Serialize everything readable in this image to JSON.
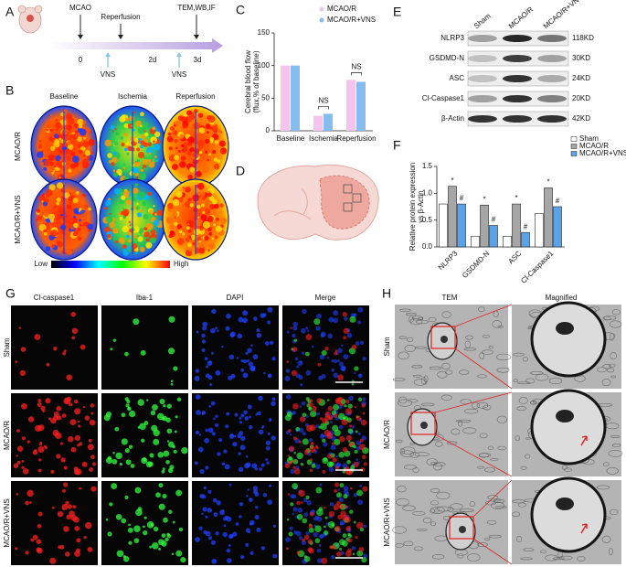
{
  "panels": {
    "labels": [
      "A",
      "B",
      "C",
      "D",
      "E",
      "F",
      "G",
      "H"
    ]
  },
  "timeline": {
    "events": [
      "MCAO",
      "Reperfusion",
      "TEM,WB,IF"
    ],
    "times": [
      "0",
      "2d",
      "3d"
    ],
    "stimulation": [
      "VNS",
      "VNS"
    ]
  },
  "flow_maps": {
    "columns": [
      "Baseline",
      "Ischemia",
      "Reperfusion"
    ],
    "rows": [
      "MCAO/R",
      "MCAO/R+VNS"
    ],
    "scale": {
      "low": "Low",
      "high": "High"
    }
  },
  "chart_data": [
    {
      "type": "bar",
      "ylabel": [
        "Cerebral blood flow",
        "(flux,% of baseline)"
      ],
      "categories": [
        "Baseline",
        "Ischemia",
        "Reperfusion"
      ],
      "series": [
        {
          "name": "MCAO/R",
          "color": "#f5c4ee",
          "values": [
            100,
            23,
            78
          ]
        },
        {
          "name": "MCAO/R+VNS",
          "color": "#86bdf0",
          "values": [
            100,
            26,
            75
          ]
        }
      ],
      "ylim": [
        0,
        150
      ],
      "yticks": [
        0,
        50,
        100,
        150
      ],
      "annotations": [
        {
          "category": "Ischemia",
          "text": "NS"
        },
        {
          "category": "Reperfusion",
          "text": "NS"
        }
      ]
    },
    {
      "type": "bar",
      "ylabel": [
        "Relative protein expression",
        "vs β-Actin"
      ],
      "categories": [
        "NLRP3",
        "GSDMD-N",
        "ASC",
        "Cl-Caspase1"
      ],
      "series": [
        {
          "name": "Sham",
          "color": "#ffffff",
          "values": [
            0.8,
            0.2,
            0.2,
            0.62
          ]
        },
        {
          "name": "MCAO/R",
          "color": "#a6a6a6",
          "values": [
            1.13,
            0.78,
            0.8,
            1.1
          ],
          "significance": [
            "*",
            "*",
            "*",
            "*"
          ]
        },
        {
          "name": "MCAO/R+VNS",
          "color": "#5aa3e8",
          "values": [
            0.8,
            0.4,
            0.27,
            0.75
          ],
          "significance": [
            "#",
            "#",
            "#",
            "#"
          ]
        }
      ],
      "ylim": [
        0,
        1.5
      ],
      "yticks": [
        {
          "value": 0,
          "label": "0.0"
        },
        0.5,
        {
          "value": 1,
          "label": "1.0"
        },
        1.5
      ]
    }
  ],
  "blot": {
    "lanes": [
      "Sham",
      "MCAO/R",
      "MCAO/R+VNS"
    ],
    "rows": [
      {
        "name": "NLRP3",
        "size": "118KD"
      },
      {
        "name": "GSDMD-N",
        "size": "30KD"
      },
      {
        "name": "ASC",
        "size": "24KD"
      },
      {
        "name": "Cl-Caspase1",
        "size": "20KD"
      },
      {
        "name": "β-Actin",
        "size": "42KD"
      }
    ]
  },
  "immunofluorescence": {
    "channels": [
      "Cl-caspase1",
      "Iba-1",
      "DAPI",
      "Merge"
    ],
    "rows": [
      "Sham",
      "MCAO/R",
      "MCAO/R+VNS"
    ]
  },
  "tem": {
    "columns": [
      "TEM",
      "Magnified"
    ],
    "rows": [
      "Sham",
      "MCAO/R",
      "MCAO/R+VNS"
    ]
  }
}
